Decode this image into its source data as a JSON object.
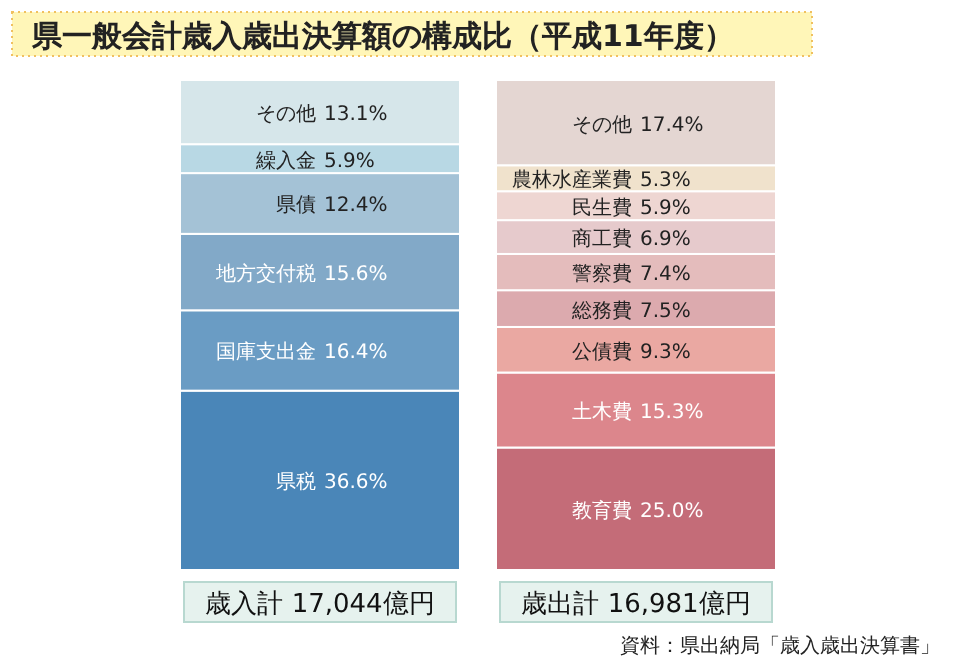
{
  "chart_data": {
    "type": "bar",
    "stacked": true,
    "legend": false,
    "title": "県一般会計歳入歳出決算額の構成比（平成11年度）",
    "categories": [
      "歳入計 17,044億円",
      "歳出計 16,981億円"
    ],
    "series": [
      {
        "name": "県税",
        "color": "#4a86b8",
        "values": [
          36.6,
          null
        ],
        "value_labels": [
          "36.6%",
          null
        ]
      },
      {
        "name": "国庫支出金",
        "color": "#6a9cc4",
        "values": [
          16.4,
          null
        ],
        "value_labels": [
          "16.4%",
          null
        ]
      },
      {
        "name": "地方交付税",
        "color": "#82a9c8",
        "values": [
          15.6,
          null
        ],
        "value_labels": [
          "15.6%",
          null
        ]
      },
      {
        "name": "県債",
        "color": "#a4c2d6",
        "values": [
          12.4,
          null
        ],
        "value_labels": [
          "12.4%",
          null
        ]
      },
      {
        "name": "繰入金",
        "color": "#b8d8e4",
        "values": [
          5.9,
          null
        ],
        "value_labels": [
          "5.9%",
          null
        ]
      },
      {
        "name": "その他",
        "color": "#d6e6ea",
        "values": [
          13.1,
          null
        ],
        "value_labels": [
          "13.1%",
          null
        ]
      },
      {
        "name": "教育費",
        "color": "#c46c78",
        "values": [
          null,
          25.0
        ],
        "value_labels": [
          null,
          "25.0%"
        ]
      },
      {
        "name": "土木費",
        "color": "#dc868c",
        "values": [
          null,
          15.3
        ],
        "value_labels": [
          null,
          "15.3%"
        ]
      },
      {
        "name": "公債費",
        "color": "#eaa8a2",
        "values": [
          null,
          9.3
        ],
        "value_labels": [
          null,
          "9.3%"
        ]
      },
      {
        "name": "総務費",
        "color": "#dcaaae",
        "values": [
          null,
          7.5
        ],
        "value_labels": [
          null,
          "7.5%"
        ]
      },
      {
        "name": "警察費",
        "color": "#e4bcbc",
        "values": [
          null,
          7.4
        ],
        "value_labels": [
          null,
          "7.4%"
        ]
      },
      {
        "name": "商工費",
        "color": "#e6cacc",
        "values": [
          null,
          6.9
        ],
        "value_labels": [
          null,
          "6.9%"
        ]
      },
      {
        "name": "民生費",
        "color": "#eed6d2",
        "values": [
          null,
          5.9
        ],
        "value_labels": [
          null,
          "5.9%"
        ]
      },
      {
        "name": "農林水産業費",
        "color": "#f0e2cc",
        "values": [
          null,
          5.3
        ],
        "value_labels": [
          null,
          "5.3%"
        ]
      },
      {
        "name": "その他",
        "color": "#e4d6d2",
        "values": [
          null,
          17.4
        ],
        "value_labels": [
          null,
          "17.4%"
        ]
      }
    ],
    "annotations": [
      "資料：県出納局「歳入歳出決算書」"
    ]
  }
}
